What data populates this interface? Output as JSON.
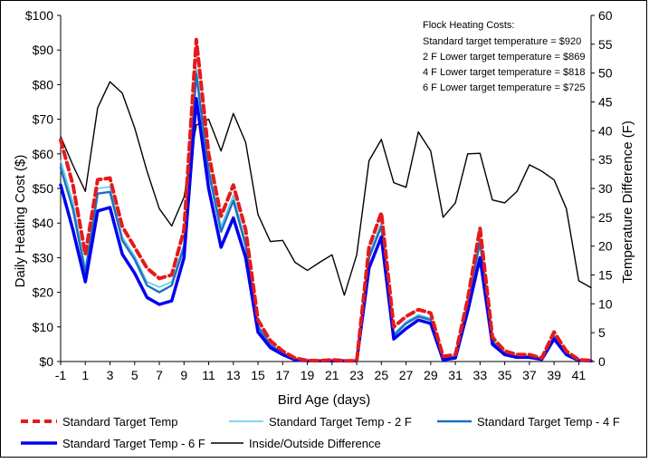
{
  "chart_data": {
    "type": "line",
    "xlabel": "Bird Age (days)",
    "ylabel": "Daily Heating Cost ($)",
    "y2label": "Temperature Difference (F)",
    "ylim": [
      0,
      100
    ],
    "y2lim": [
      0,
      60
    ],
    "x_range": [
      -1,
      42
    ],
    "x_ticks": [
      "-1",
      "1",
      "3",
      "5",
      "7",
      "9",
      "11",
      "13",
      "15",
      "17",
      "19",
      "21",
      "23",
      "25",
      "27",
      "29",
      "31",
      "33",
      "35",
      "37",
      "39",
      "41"
    ],
    "x_tick_values": [
      -1,
      1,
      3,
      5,
      7,
      9,
      11,
      13,
      15,
      17,
      19,
      21,
      23,
      25,
      27,
      29,
      31,
      33,
      35,
      37,
      39,
      41
    ],
    "y_ticks": [
      "$0",
      "$10",
      "$20",
      "$30",
      "$40",
      "$50",
      "$60",
      "$70",
      "$80",
      "$90",
      "$100"
    ],
    "y_tick_values": [
      0,
      10,
      20,
      30,
      40,
      50,
      60,
      70,
      80,
      90,
      100
    ],
    "y2_ticks": [
      "0",
      "5",
      "10",
      "15",
      "20",
      "25",
      "30",
      "35",
      "40",
      "45",
      "50",
      "55",
      "60"
    ],
    "y2_tick_values": [
      0,
      5,
      10,
      15,
      20,
      25,
      30,
      35,
      40,
      45,
      50,
      55,
      60
    ],
    "grid": false,
    "legend_position": "bottom",
    "x": [
      -1,
      0,
      1,
      2,
      3,
      4,
      5,
      6,
      7,
      8,
      9,
      10,
      11,
      12,
      13,
      14,
      15,
      16,
      17,
      18,
      19,
      20,
      21,
      22,
      23,
      24,
      25,
      26,
      27,
      28,
      29,
      30,
      31,
      32,
      33,
      34,
      35,
      36,
      37,
      38,
      39,
      40,
      41,
      42
    ],
    "series": [
      {
        "name": "Standard Target Temp",
        "axis": "left",
        "color": "#e41a1c",
        "dash": true,
        "values": [
          64,
          51,
          31,
          52.5,
          53,
          39,
          33,
          27,
          24,
          25,
          38,
          93,
          60,
          42,
          51,
          38,
          12,
          6,
          3,
          1,
          0.3,
          0.2,
          0.5,
          0.2,
          0.2,
          33,
          43,
          10,
          13,
          15,
          14,
          1.5,
          2,
          18,
          38.5,
          7,
          3,
          2,
          2,
          1,
          8.5,
          3,
          0.5,
          0.3
        ]
      },
      {
        "name": "Standard Target Temp - 2 F",
        "axis": "left",
        "color": "#5bc8ea",
        "dash": false,
        "values": [
          58,
          46,
          27,
          50,
          50.5,
          36,
          30.5,
          23,
          21.5,
          23,
          34,
          85,
          56,
          39,
          48,
          34.5,
          10.5,
          5,
          2.5,
          0.8,
          0.2,
          0.2,
          0.3,
          0.2,
          0.2,
          31,
          40,
          8,
          11.5,
          13.5,
          12.5,
          1,
          1.5,
          17,
          36,
          6,
          2.5,
          1.5,
          1.5,
          0.8,
          7.5,
          2.5,
          0.3,
          0.2
        ]
      },
      {
        "name": "Standard Target Temp - 4 F",
        "axis": "left",
        "color": "#1f6fbf",
        "dash": false,
        "values": [
          56,
          44,
          25.5,
          48.5,
          49,
          35,
          29.5,
          22,
          20,
          22,
          33,
          83,
          55,
          37.5,
          46.5,
          33.5,
          10,
          4.8,
          2.3,
          0.6,
          0.2,
          0.2,
          0.3,
          0.2,
          0.2,
          30,
          39,
          7.5,
          11,
          13,
          12,
          0.8,
          1.3,
          16.5,
          34.5,
          5.8,
          2.3,
          1.4,
          1.4,
          0.7,
          7.3,
          2.3,
          0.3,
          0.2
        ]
      },
      {
        "name": "Standard Target Temp - 6 F",
        "axis": "left",
        "color": "#0000ee",
        "dash": false,
        "values": [
          51,
          38,
          23,
          43.5,
          44.5,
          31,
          25.5,
          18.5,
          16.5,
          17.5,
          30,
          76,
          50,
          33,
          41.5,
          30,
          8.5,
          4,
          2,
          0.5,
          0.2,
          0.2,
          0.2,
          0.2,
          0.2,
          27,
          36,
          6.5,
          9.5,
          12,
          11,
          0.5,
          1,
          14.5,
          30,
          5,
          2,
          1.2,
          1.2,
          0.6,
          6.5,
          2,
          0.3,
          0.2
        ]
      },
      {
        "name": "Inside/Outside Difference",
        "axis": "right",
        "color": "#000000",
        "dash": false,
        "values": [
          39,
          34,
          29.5,
          44,
          48.5,
          46.5,
          40.5,
          33,
          26.5,
          23.5,
          28.5,
          41,
          42,
          36.5,
          43,
          38,
          25.5,
          20.8,
          21,
          17.2,
          15.8,
          17.2,
          18.5,
          11.5,
          18.5,
          34.8,
          38.5,
          31,
          30.2,
          39.8,
          36.5,
          25,
          27.5,
          36,
          36.1,
          28,
          27.5,
          29.5,
          34.1,
          33,
          31.5,
          26.5,
          14,
          12.8
        ]
      }
    ]
  },
  "annotation": {
    "heading": "Flock Heating Costs:",
    "lines": [
      "Standard target temperature = $920",
      "2 F Lower target temperature = $869",
      "4 F Lower target temperature = $818",
      "6 F Lower target temperature = $725"
    ]
  }
}
